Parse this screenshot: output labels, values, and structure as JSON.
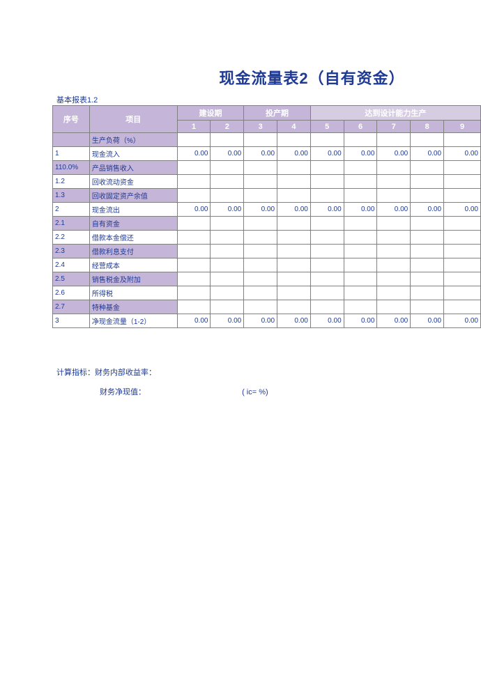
{
  "title": "现金流量表2（自有资金）",
  "subtitle": "基本报表1.2",
  "colors": {
    "brand": "#1f3a93",
    "header_bg": "#c4b5d9",
    "header_right_bg": "#d6cde3",
    "row_purple": "#c4b5d9",
    "row_white": "#ffffff",
    "border": "#808080"
  },
  "table": {
    "header": {
      "seq": "序号",
      "item": "项目",
      "groups": [
        {
          "label": "建设期",
          "span": 2
        },
        {
          "label": "投产期",
          "span": 2
        },
        {
          "label": "达到设计能力生产",
          "span": 5
        }
      ],
      "cols": [
        "1",
        "2",
        "3",
        "4",
        "5",
        "6",
        "7",
        "8",
        "9"
      ]
    },
    "rows": [
      {
        "seq": "",
        "item": "生产负荷（%）",
        "vals": [
          "",
          "",
          "",
          "",
          "",
          "",
          "",
          "",
          ""
        ],
        "style": "purple"
      },
      {
        "seq": "1",
        "item": "现金流入",
        "vals": [
          "0.00",
          "0.00",
          "0.00",
          "0.00",
          "0.00",
          "0.00",
          "0.00",
          "0.00",
          "0.00"
        ],
        "style": "white"
      },
      {
        "seq": "110.0%",
        "item": "产品销售收入",
        "vals": [
          "",
          "",
          "",
          "",
          "",
          "",
          "",
          "",
          ""
        ],
        "style": "purple"
      },
      {
        "seq": "1.2",
        "item": "回收流动资金",
        "vals": [
          "",
          "",
          "",
          "",
          "",
          "",
          "",
          "",
          ""
        ],
        "style": "white"
      },
      {
        "seq": "1.3",
        "item": "回收固定资产余值",
        "vals": [
          "",
          "",
          "",
          "",
          "",
          "",
          "",
          "",
          ""
        ],
        "style": "purple"
      },
      {
        "seq": "2",
        "item": "现金流出",
        "vals": [
          "0.00",
          "0.00",
          "0.00",
          "0.00",
          "0.00",
          "0.00",
          "0.00",
          "0.00",
          "0.00"
        ],
        "style": "white"
      },
      {
        "seq": "2.1",
        "item": "自有资金",
        "vals": [
          "",
          "",
          "",
          "",
          "",
          "",
          "",
          "",
          ""
        ],
        "style": "purple"
      },
      {
        "seq": "2.2",
        "item": "借款本金偿还",
        "vals": [
          "",
          "",
          "",
          "",
          "",
          "",
          "",
          "",
          ""
        ],
        "style": "white"
      },
      {
        "seq": "2.3",
        "item": "借款利息支付",
        "vals": [
          "",
          "",
          "",
          "",
          "",
          "",
          "",
          "",
          ""
        ],
        "style": "purple"
      },
      {
        "seq": "2.4",
        "item": "经营成本",
        "vals": [
          "",
          "",
          "",
          "",
          "",
          "",
          "",
          "",
          ""
        ],
        "style": "white"
      },
      {
        "seq": "2.5",
        "item": "销售税金及附加",
        "vals": [
          "",
          "",
          "",
          "",
          "",
          "",
          "",
          "",
          ""
        ],
        "style": "purple"
      },
      {
        "seq": "2.6",
        "item": "所得税",
        "vals": [
          "",
          "",
          "",
          "",
          "",
          "",
          "",
          "",
          ""
        ],
        "style": "white"
      },
      {
        "seq": "2.7",
        "item": "特种基金",
        "vals": [
          "",
          "",
          "",
          "",
          "",
          "",
          "",
          "",
          ""
        ],
        "style": "purple"
      },
      {
        "seq": "3",
        "item": "净现金流量（1-2）",
        "vals": [
          "0.00",
          "0.00",
          "0.00",
          "0.00",
          "0.00",
          "0.00",
          "0.00",
          "0.00",
          "0.00"
        ],
        "style": "white"
      }
    ]
  },
  "footer": {
    "line1": "计算指标：财务内部收益率：",
    "line2a": "财务净现值：",
    "line2b": "( ic=   %)"
  }
}
